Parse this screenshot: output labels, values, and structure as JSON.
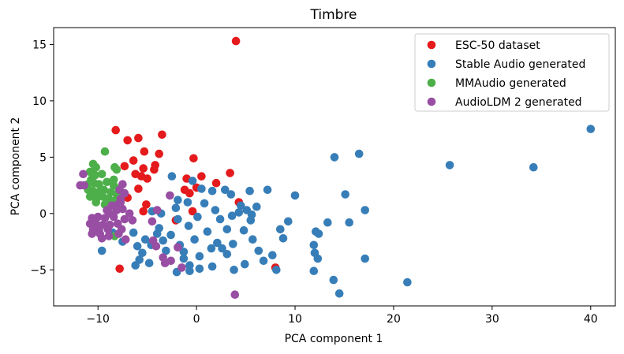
{
  "chart_data": {
    "type": "scatter",
    "title": "Timbre",
    "xlabel": "PCA component 1",
    "ylabel": "PCA component 2",
    "xlim": [
      -14.5,
      42.5
    ],
    "ylim": [
      -8.2,
      16.5
    ],
    "x_ticks": [
      -10,
      0,
      10,
      20,
      30,
      40
    ],
    "x_tick_labels": [
      "−10",
      "0",
      "10",
      "20",
      "30",
      "40"
    ],
    "y_ticks": [
      -5,
      0,
      5,
      10,
      15
    ],
    "y_tick_labels": [
      "−5",
      "0",
      "5",
      "10",
      "15"
    ],
    "grid": false,
    "legend_position": "top-right",
    "series": [
      {
        "name": "ESC-50 dataset",
        "color": "#e41a1c",
        "points": [
          [
            4,
            15.3
          ],
          [
            -8.2,
            7.4
          ],
          [
            -7,
            6.5
          ],
          [
            -5.9,
            6.7
          ],
          [
            -3.5,
            7
          ],
          [
            -5.3,
            5.5
          ],
          [
            -3.8,
            5.3
          ],
          [
            -6.4,
            4.7
          ],
          [
            -7.3,
            4.2
          ],
          [
            -5.4,
            4
          ],
          [
            -4.2,
            4.3
          ],
          [
            -4.3,
            3.9
          ],
          [
            -6.2,
            3.5
          ],
          [
            -5.6,
            3.3
          ],
          [
            -5,
            3.1
          ],
          [
            -1,
            3.1
          ],
          [
            -0.3,
            4.9
          ],
          [
            0.5,
            3.3
          ],
          [
            3.4,
            3.6
          ],
          [
            2,
            2.7
          ],
          [
            -5.9,
            2.2
          ],
          [
            -1.2,
            2.1
          ],
          [
            0,
            2.3
          ],
          [
            -7,
            1.4
          ],
          [
            -0.7,
            1.8
          ],
          [
            4.3,
            1
          ],
          [
            -5.1,
            0.8
          ],
          [
            -5.4,
            0.2
          ],
          [
            -0.4,
            0.2
          ],
          [
            -2.1,
            -0.6
          ],
          [
            -7.8,
            -4.9
          ],
          [
            8,
            -4.8
          ]
        ]
      },
      {
        "name": "Stable Audio generated",
        "color": "#377eb8",
        "points": [
          [
            40,
            7.5
          ],
          [
            16.5,
            5.3
          ],
          [
            14,
            5
          ],
          [
            25.7,
            4.3
          ],
          [
            34.2,
            4.1
          ],
          [
            -2.5,
            3.3
          ],
          [
            -0.4,
            2.9
          ],
          [
            0.5,
            2.2
          ],
          [
            1.6,
            2
          ],
          [
            2.9,
            2.1
          ],
          [
            5.4,
            2
          ],
          [
            7.2,
            2.1
          ],
          [
            10,
            1.6
          ],
          [
            15.1,
            1.7
          ],
          [
            3.5,
            1.7
          ],
          [
            -1.9,
            1.2
          ],
          [
            -0.9,
            1
          ],
          [
            0.8,
            0.9
          ],
          [
            4.5,
            0.7
          ],
          [
            5.1,
            0.3
          ],
          [
            6.1,
            0.6
          ],
          [
            -4.5,
            0.2
          ],
          [
            -3.6,
            0
          ],
          [
            -2.1,
            0.5
          ],
          [
            1.9,
            0.3
          ],
          [
            2.4,
            -0.5
          ],
          [
            4.3,
            0.1
          ],
          [
            5.6,
            -0.1
          ],
          [
            17.1,
            0.3
          ],
          [
            -1.9,
            -0.5
          ],
          [
            0.1,
            -0.3
          ],
          [
            3.6,
            -0.2
          ],
          [
            5.5,
            -0.6
          ],
          [
            9.3,
            -0.7
          ],
          [
            13.3,
            -0.8
          ],
          [
            15.5,
            -0.8
          ],
          [
            -3.8,
            -1.3
          ],
          [
            -0.8,
            -1.1
          ],
          [
            1.1,
            -1.6
          ],
          [
            3.1,
            -1.4
          ],
          [
            4.8,
            -1.5
          ],
          [
            8.5,
            -1.4
          ],
          [
            12.1,
            -1.6
          ],
          [
            12.4,
            -1.8
          ],
          [
            -8.5,
            -1.7
          ],
          [
            -6.4,
            -1.7
          ],
          [
            -4,
            -1.8
          ],
          [
            -5.2,
            -2.3
          ],
          [
            -2.6,
            -1.9
          ],
          [
            -0.2,
            -2.3
          ],
          [
            2.1,
            -2.6
          ],
          [
            3.7,
            -2.7
          ],
          [
            5.7,
            -2.3
          ],
          [
            8.8,
            -2.2
          ],
          [
            11.9,
            -2.8
          ],
          [
            -7.5,
            -2.5
          ],
          [
            -6,
            -2.9
          ],
          [
            -4.6,
            -2.8
          ],
          [
            -3.4,
            -2.4
          ],
          [
            -1.7,
            -2.8
          ],
          [
            1.5,
            -3.1
          ],
          [
            2.6,
            -3.1
          ],
          [
            3.1,
            -3.6
          ],
          [
            6.3,
            -3.3
          ],
          [
            7.7,
            -3.7
          ],
          [
            12,
            -3.5
          ],
          [
            12.3,
            -4
          ],
          [
            17.1,
            -4
          ],
          [
            -9.6,
            -3.3
          ],
          [
            -5.5,
            -3.5
          ],
          [
            -3.1,
            -3.3
          ],
          [
            -1.3,
            -3.4
          ],
          [
            0.3,
            -3.8
          ],
          [
            -5.8,
            -4.1
          ],
          [
            -1.3,
            -4
          ],
          [
            6.8,
            -4.2
          ],
          [
            -4.8,
            -4.4
          ],
          [
            -6.2,
            -4.6
          ],
          [
            -0.7,
            -4.6
          ],
          [
            1.6,
            -4.7
          ],
          [
            0.3,
            -4.9
          ],
          [
            3.8,
            -5
          ],
          [
            4.9,
            -4.5
          ],
          [
            8.1,
            -5
          ],
          [
            -0.7,
            -5.1
          ],
          [
            -2,
            -5.2
          ],
          [
            11.9,
            -5.1
          ],
          [
            13.9,
            -5.9
          ],
          [
            21.4,
            -6.1
          ],
          [
            14.5,
            -7.1
          ]
        ]
      },
      {
        "name": "MMAudio generated",
        "color": "#4daf4a",
        "points": [
          [
            -9.3,
            5.5
          ],
          [
            -10.5,
            4.4
          ],
          [
            -10.2,
            4.1
          ],
          [
            -8.3,
            4.1
          ],
          [
            -8.1,
            3.9
          ],
          [
            -10.8,
            3.7
          ],
          [
            -10.3,
            3.4
          ],
          [
            -9.6,
            3.5
          ],
          [
            -10.7,
            3
          ],
          [
            -8.4,
            3
          ],
          [
            -11,
            2.6
          ],
          [
            -10.4,
            2.7
          ],
          [
            -9.9,
            2.6
          ],
          [
            -9.1,
            2.8
          ],
          [
            -8.4,
            2.5
          ],
          [
            -7.9,
            2.2
          ],
          [
            -11,
            2.1
          ],
          [
            -10.5,
            2
          ],
          [
            -9.9,
            1.9
          ],
          [
            -9.4,
            2.1
          ],
          [
            -8.7,
            1.9
          ],
          [
            -8.1,
            1.7
          ],
          [
            -10.8,
            1.5
          ],
          [
            -10.1,
            1.4
          ],
          [
            -9.5,
            1.5
          ],
          [
            -8.9,
            1.3
          ],
          [
            -8.4,
            1.1
          ],
          [
            -10.2,
            1
          ],
          [
            -9.3,
            0.8
          ],
          [
            -8.3,
            -2
          ]
        ]
      },
      {
        "name": "AudioLDM 2 generated",
        "color": "#984ea3",
        "points": [
          [
            -11.5,
            3.5
          ],
          [
            -11.8,
            2.5
          ],
          [
            -11.4,
            2.5
          ],
          [
            -7.5,
            2.6
          ],
          [
            -7.8,
            2.1
          ],
          [
            -7.3,
            1.8
          ],
          [
            -7.7,
            1.3
          ],
          [
            -2.7,
            1.6
          ],
          [
            -8.6,
            0.7
          ],
          [
            -8,
            0.8
          ],
          [
            -7.7,
            1
          ],
          [
            -9.1,
            0.3
          ],
          [
            -8.8,
            0
          ],
          [
            -8.1,
            0.3
          ],
          [
            -7.5,
            0.4
          ],
          [
            -6.8,
            0
          ],
          [
            -4,
            0.3
          ],
          [
            -10.6,
            -0.4
          ],
          [
            -10,
            -0.3
          ],
          [
            -9.3,
            -0.4
          ],
          [
            -8.4,
            -0.3
          ],
          [
            -7.3,
            -0.5
          ],
          [
            -10.8,
            -0.9
          ],
          [
            -10.2,
            -0.9
          ],
          [
            -9.5,
            -1
          ],
          [
            -8.8,
            -1
          ],
          [
            -8,
            -0.9
          ],
          [
            -6.5,
            -0.6
          ],
          [
            -4.5,
            -0.7
          ],
          [
            -10.5,
            -1.4
          ],
          [
            -9.9,
            -1.5
          ],
          [
            -9,
            -1.4
          ],
          [
            -7.6,
            -1.4
          ],
          [
            -10.6,
            -1.8
          ],
          [
            -9.8,
            -1.8
          ],
          [
            -8.9,
            -2
          ],
          [
            -7.9,
            -1.8
          ],
          [
            -9.6,
            -2.2
          ],
          [
            -7.2,
            -2.3
          ],
          [
            -4.4,
            -2.4
          ],
          [
            -4.1,
            -2.9
          ],
          [
            -1.9,
            -3
          ],
          [
            -3.4,
            -3.9
          ],
          [
            -2.6,
            -4.2
          ],
          [
            -1.5,
            -4.8
          ],
          [
            -3.2,
            -4.4
          ],
          [
            3.9,
            -7.2
          ]
        ]
      }
    ]
  }
}
